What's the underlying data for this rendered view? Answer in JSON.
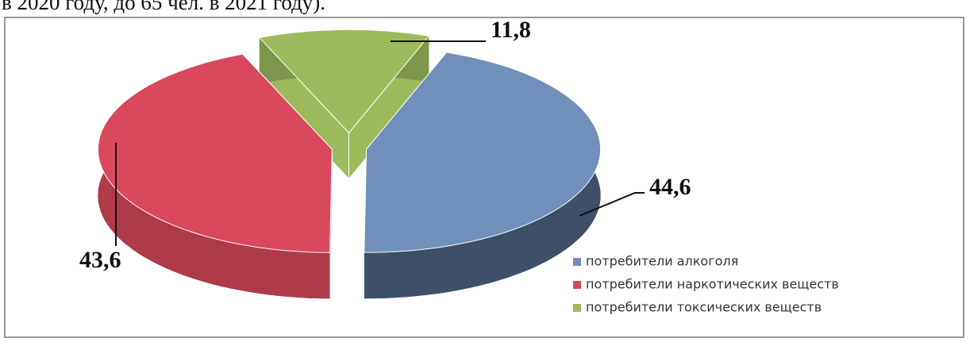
{
  "document_text": "в 2020 году, до 65 чел. в 2021 году).",
  "chart_data": {
    "type": "pie",
    "categories": [
      "потребители алкоголя",
      "потребители наркотических веществ",
      "потребители токсических веществ"
    ],
    "values": [
      44.6,
      43.6,
      11.8
    ],
    "value_labels": [
      "44,6",
      "43,6",
      "11,8"
    ],
    "colors": [
      "#7090bb",
      "#d9485c",
      "#9dbb5c"
    ],
    "legend": "bottom-right"
  }
}
